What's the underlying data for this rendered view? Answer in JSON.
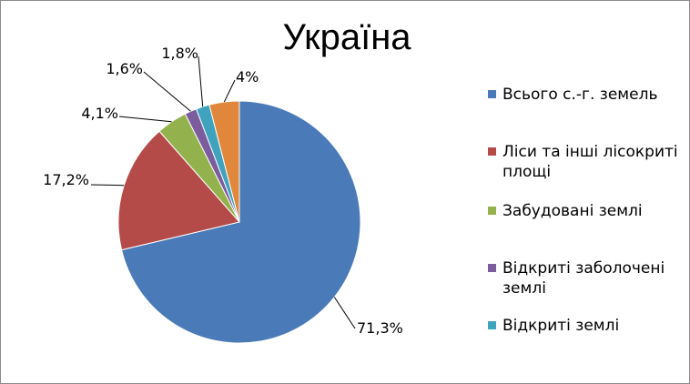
{
  "chart_data": {
    "type": "pie",
    "title": "Україна",
    "categories": [
      "Всього с.-г. земель",
      "Ліси та інші лісокриті площі",
      "Забудовані землі",
      "Відкриті заболочені землі",
      "Відкриті землі",
      ""
    ],
    "values": [
      71.3,
      17.2,
      4.1,
      1.6,
      1.8,
      4
    ],
    "data_labels": [
      "71,3%",
      "17,2%",
      "4,1%",
      "1,6%",
      "1,8%",
      "4%"
    ],
    "colors": [
      "#4a7ab7",
      "#b44b48",
      "#93b24e",
      "#7b5d9e",
      "#3fa3bd",
      "#e0873b"
    ],
    "legend_position": "right",
    "legend": [
      "Всього с.-г. земель",
      "Ліси та інші лісокриті площі",
      "Забудовані землі",
      "Відкриті заболочені землі",
      "Відкриті землі"
    ]
  }
}
